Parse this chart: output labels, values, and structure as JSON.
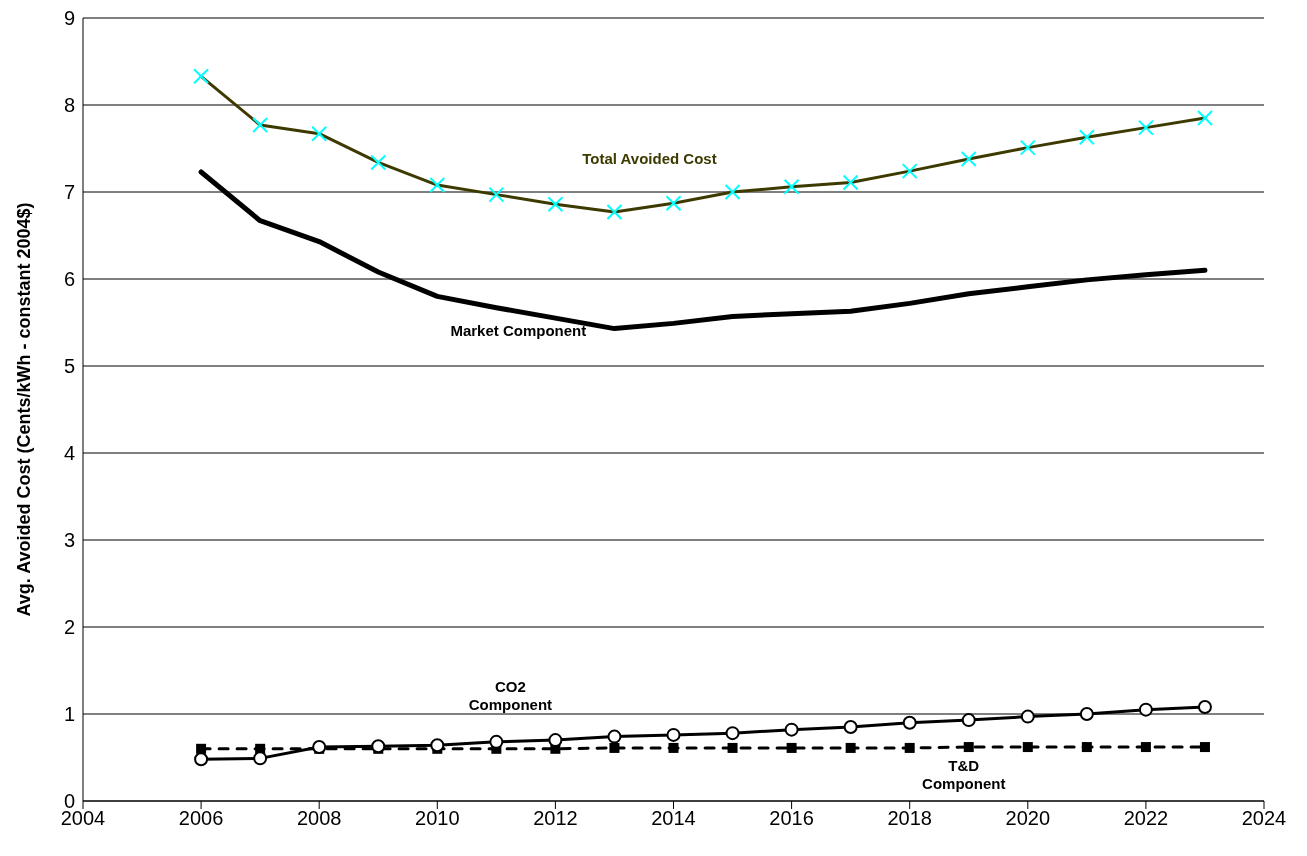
{
  "chart_data": {
    "type": "line",
    "ylabel": "Avg. Avoided Cost (Cents/kWh - constant 2004$)",
    "x": [
      2006,
      2007,
      2008,
      2009,
      2010,
      2011,
      2012,
      2013,
      2014,
      2015,
      2016,
      2017,
      2018,
      2019,
      2020,
      2021,
      2022,
      2023
    ],
    "series": [
      {
        "name": "Total Avoided Cost",
        "color": "#3d3a00",
        "marker": "cross",
        "line_style": "solid",
        "values": [
          8.33,
          7.77,
          7.67,
          7.34,
          7.08,
          6.97,
          6.86,
          6.77,
          6.87,
          7.0,
          7.06,
          7.11,
          7.24,
          7.38,
          7.51,
          7.63,
          7.74,
          7.85
        ]
      },
      {
        "name": "Market Component",
        "color": "#000000",
        "marker": "none",
        "line_style": "solid",
        "values": [
          7.23,
          6.67,
          6.43,
          6.08,
          5.8,
          5.67,
          5.55,
          5.43,
          5.49,
          5.57,
          5.6,
          5.63,
          5.72,
          5.83,
          5.91,
          5.99,
          6.05,
          6.1
        ]
      },
      {
        "name": "CO2 Component",
        "color": "#000000",
        "marker": "circle",
        "line_style": "solid",
        "values": [
          0.48,
          0.49,
          0.62,
          0.63,
          0.64,
          0.68,
          0.7,
          0.74,
          0.76,
          0.78,
          0.82,
          0.85,
          0.9,
          0.93,
          0.97,
          1.0,
          1.05,
          1.08
        ]
      },
      {
        "name": "T&D Component",
        "color": "#000000",
        "marker": "square",
        "line_style": "dashed",
        "values": [
          0.6,
          0.6,
          0.6,
          0.6,
          0.6,
          0.6,
          0.6,
          0.61,
          0.61,
          0.61,
          0.61,
          0.61,
          0.61,
          0.62,
          0.62,
          0.62,
          0.62,
          0.62
        ]
      }
    ],
    "xlim": [
      2004,
      2024
    ],
    "xticks": [
      2004,
      2006,
      2008,
      2010,
      2012,
      2014,
      2016,
      2018,
      2020,
      2022,
      2024
    ],
    "ylim": [
      0,
      9
    ],
    "yticks": [
      0,
      1,
      2,
      3,
      4,
      5,
      6,
      7,
      8,
      9
    ],
    "grid": "y"
  }
}
